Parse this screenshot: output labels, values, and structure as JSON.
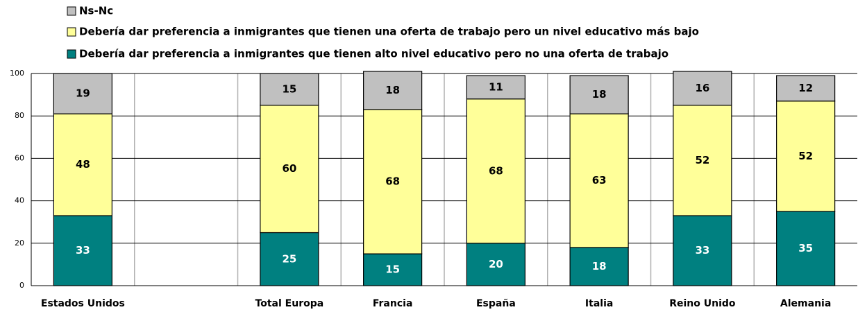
{
  "chart_data": {
    "type": "stacked_bar",
    "categories": [
      "Estados Unidos",
      null,
      "Total Europa",
      "Francia",
      "España",
      "Italia",
      "Reino Unido",
      "Alemania"
    ],
    "series": [
      {
        "name": "Debería dar preferencia a inmigrantes que tienen alto nivel educativo pero no una oferta de trabajo",
        "color": "#008080",
        "label_color": "#ffffff",
        "values": [
          33,
          null,
          25,
          15,
          20,
          18,
          33,
          35
        ]
      },
      {
        "name": "Debería dar preferencia a inmigrantes que tienen una oferta de trabajo pero un nivel educativo más bajo",
        "color": "#ffff99",
        "label_color": "#000000",
        "values": [
          48,
          null,
          60,
          68,
          68,
          63,
          52,
          52
        ]
      },
      {
        "name": "Ns-Nc",
        "color": "#c0c0c0",
        "label_color": "#000000",
        "values": [
          19,
          null,
          15,
          18,
          11,
          18,
          16,
          12
        ]
      }
    ],
    "ylim": [
      0,
      100
    ],
    "yticks": [
      0,
      20,
      40,
      60,
      80,
      100
    ],
    "grid": true,
    "legend": "top-left"
  }
}
